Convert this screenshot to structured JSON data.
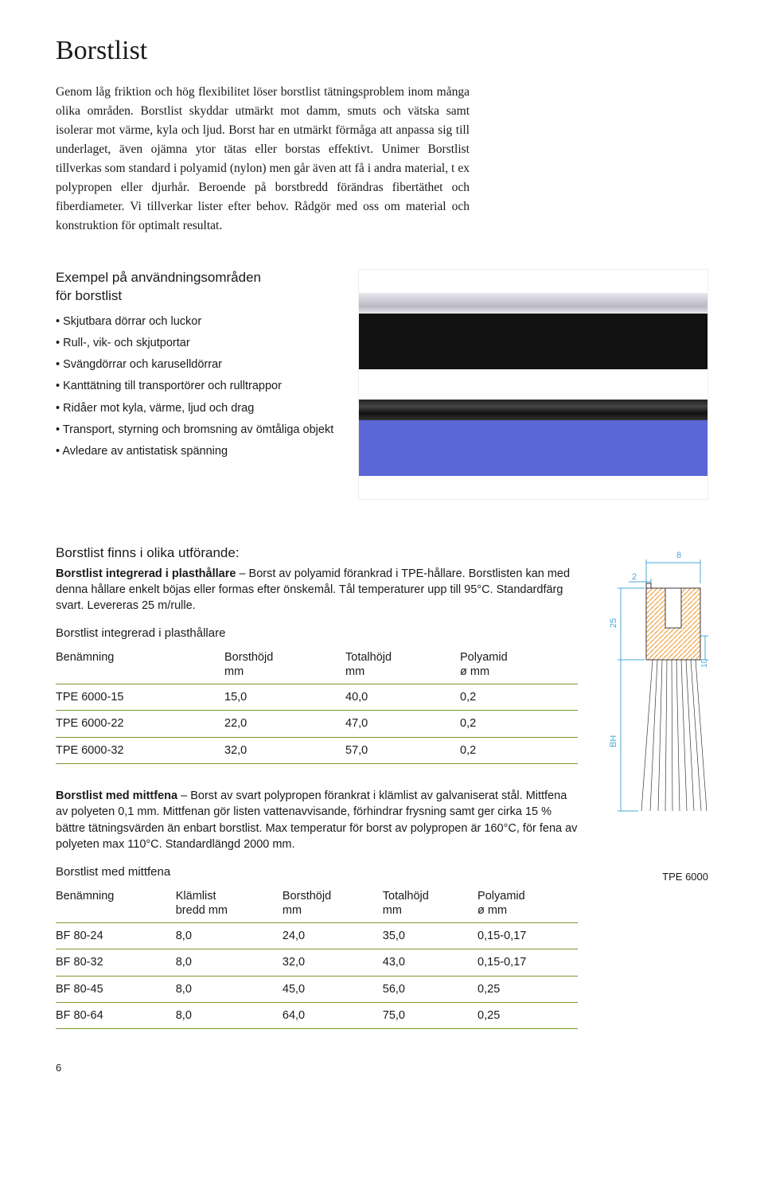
{
  "title": "Borstlist",
  "intro": "Genom låg friktion och hög flexibilitet löser borstlist tätningsproblem inom många olika områden. Borstlist skyddar utmärkt mot damm, smuts och vätska samt isolerar mot värme, kyla och ljud. Borst har en utmärkt förmåga att anpassa sig till underlaget, även ojämna ytor tätas eller borstas effektivt. Unimer Borstlist tillverkas som standard i polyamid (nylon) men går även att få i andra material, t ex polypropen eller djurhår. Beroende på borstbredd förändras fibertäthet och fiberdiameter. Vi tillverkar lister efter behov. Rådgör med oss om material och konstruktion för optimalt resultat.",
  "examples": {
    "heading1": "Exempel på användningsområden",
    "heading2": "för borstlist",
    "items": [
      "Skjutbara dörrar och luckor",
      "Rull-, vik- och skjutportar",
      "Svängdörrar och karuselldörrar",
      "Kanttätning till transportörer och rulltrappor",
      "Ridåer mot kyla, värme, ljud och drag",
      "Transport, styrning och bromsning av ömtåliga objekt",
      "Avledare av antistatisk spänning"
    ]
  },
  "variants_heading": "Borstlist finns i olika utförande:",
  "variant1": {
    "lead": "Borstlist integrerad i plasthållare",
    "body": " – Borst av polyamid förankrad i TPE-hållare. Borstlisten kan med denna hållare enkelt böjas eller formas efter önskemål. Tål temperaturer upp till 95°C. Standardfärg svart. Levereras 25 m/rulle.",
    "table_title": "Borstlist integrerad i plasthållare",
    "columns": {
      "c0a": "Benämning",
      "c0b": "",
      "c1a": "Borsthöjd",
      "c1b": "mm",
      "c2a": "Totalhöjd",
      "c2b": "mm",
      "c3a": "Polyamid",
      "c3b": "ø mm"
    },
    "rows": [
      [
        "TPE 6000-15",
        "15,0",
        "40,0",
        "0,2"
      ],
      [
        "TPE 6000-22",
        "22,0",
        "47,0",
        "0,2"
      ],
      [
        "TPE 6000-32",
        "32,0",
        "57,0",
        "0,2"
      ]
    ]
  },
  "variant2": {
    "lead": "Borstlist med mittfena",
    "body": " – Borst av svart polypropen förankrat i klämlist av galvaniserat stål. Mittfena av polyeten 0,1 mm. Mittfenan gör listen vattenavvisande, förhindrar frysning samt ger cirka 15 % bättre tätningsvärden än enbart borstlist. Max temperatur för borst av polypropen är 160°C, för fena av polyeten max 110°C. Standardlängd 2000 mm.",
    "table_title": "Borstlist med mittfena",
    "columns": {
      "c0a": "Benämning",
      "c0b": "",
      "c1a": "Klämlist",
      "c1b": "bredd mm",
      "c2a": "Borsthöjd",
      "c2b": "mm",
      "c3a": "Totalhöjd",
      "c3b": "mm",
      "c4a": "Polyamid",
      "c4b": "ø mm"
    },
    "rows": [
      [
        "BF 80-24",
        "8,0",
        "24,0",
        "35,0",
        "0,15-0,17"
      ],
      [
        "BF 80-32",
        "8,0",
        "32,0",
        "43,0",
        "0,15-0,17"
      ],
      [
        "BF 80-45",
        "8,0",
        "45,0",
        "56,0",
        "0,25"
      ],
      [
        "BF 80-64",
        "8,0",
        "64,0",
        "75,0",
        "0,25"
      ]
    ]
  },
  "figure": {
    "label_8": "8",
    "label_2": "2",
    "label_25": "25",
    "label_10": "10",
    "label_bh": "BH",
    "caption": "TPE 6000",
    "colors": {
      "dim": "#4aa8d8",
      "line": "#3a3a3a",
      "orange": "#f0a040",
      "white": "#ffffff"
    }
  },
  "page_number": "6"
}
